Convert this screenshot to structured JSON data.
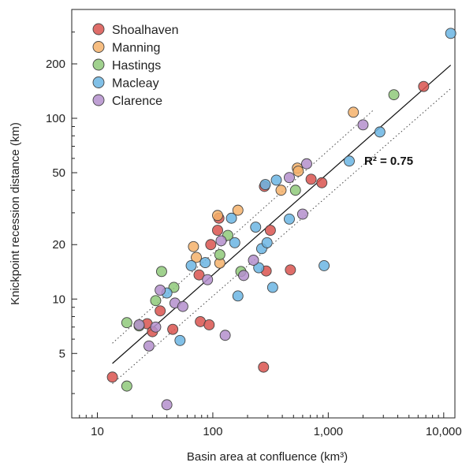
{
  "chart_data": {
    "type": "scatter",
    "xlabel": "Basin area at confluence (km³)",
    "ylabel": "Knickpoint recession distance (km)",
    "x_scale": "log",
    "y_scale": "log",
    "xlim": [
      6,
      12500
    ],
    "ylim": [
      2.2,
      400
    ],
    "x_ticks": [
      {
        "value": 10,
        "label": "10"
      },
      {
        "value": 100,
        "label": "100"
      },
      {
        "value": 1000,
        "label": "1,000"
      },
      {
        "value": 10000,
        "label": "10,000"
      }
    ],
    "y_ticks": [
      {
        "value": 5,
        "label": "5"
      },
      {
        "value": 10,
        "label": "10"
      },
      {
        "value": 20,
        "label": "20"
      },
      {
        "value": 50,
        "label": "50"
      },
      {
        "value": 100,
        "label": "100"
      },
      {
        "value": 200,
        "label": "200"
      }
    ],
    "legend_position": "top-left",
    "grid": false,
    "annotation": "R² = 0.75",
    "fit_line": {
      "x": [
        13.5,
        11500
      ],
      "y": [
        4.4,
        197
      ]
    },
    "confidence_upper": {
      "x": [
        13.5,
        2500
      ],
      "y": [
        5.7,
        112
      ]
    },
    "confidence_lower": {
      "x": [
        13.5,
        11500
      ],
      "y": [
        3.4,
        146
      ]
    },
    "series": [
      {
        "name": "Shoalhaven",
        "color": "#d9534f",
        "points": [
          [
            13.5,
            3.7
          ],
          [
            27,
            7.3
          ],
          [
            30,
            6.6
          ],
          [
            35,
            8.6
          ],
          [
            45,
            6.8
          ],
          [
            78,
            7.5
          ],
          [
            93,
            7.2
          ],
          [
            76,
            13.6
          ],
          [
            96,
            20
          ],
          [
            110,
            24
          ],
          [
            113,
            28
          ],
          [
            275,
            4.2
          ],
          [
            290,
            14.3
          ],
          [
            470,
            14.5
          ],
          [
            280,
            42
          ],
          [
            315,
            24
          ],
          [
            710,
            46
          ],
          [
            880,
            44
          ],
          [
            6700,
            150
          ]
        ]
      },
      {
        "name": "Manning",
        "color": "#f5b26b",
        "points": [
          [
            68,
            19.5
          ],
          [
            72,
            17
          ],
          [
            110,
            29
          ],
          [
            165,
            31
          ],
          [
            115,
            15.8
          ],
          [
            390,
            40
          ],
          [
            540,
            53
          ],
          [
            550,
            51
          ],
          [
            1650,
            108
          ]
        ]
      },
      {
        "name": "Hastings",
        "color": "#8fc97a",
        "points": [
          [
            18,
            3.3
          ],
          [
            18,
            7.4
          ],
          [
            23,
            7.1
          ],
          [
            32,
            9.8
          ],
          [
            36,
            14.2
          ],
          [
            46,
            11.6
          ],
          [
            115,
            17.6
          ],
          [
            135,
            22.5
          ],
          [
            175,
            14.2
          ],
          [
            520,
            40
          ],
          [
            3700,
            135
          ]
        ]
      },
      {
        "name": "Macleay",
        "color": "#6bb5e3",
        "points": [
          [
            40,
            10.8
          ],
          [
            52,
            5.9
          ],
          [
            65,
            15.3
          ],
          [
            86,
            15.9
          ],
          [
            145,
            28
          ],
          [
            155,
            20.5
          ],
          [
            165,
            10.4
          ],
          [
            235,
            25
          ],
          [
            250,
            14.9
          ],
          [
            265,
            19
          ],
          [
            285,
            43
          ],
          [
            295,
            20.5
          ],
          [
            330,
            11.6
          ],
          [
            355,
            45.5
          ],
          [
            460,
            27.7
          ],
          [
            920,
            15.3
          ],
          [
            1520,
            58
          ],
          [
            2800,
            84
          ],
          [
            11500,
            295
          ]
        ]
      },
      {
        "name": "Clarence",
        "color": "#b48fcc",
        "points": [
          [
            23,
            7.2
          ],
          [
            28,
            5.5
          ],
          [
            32,
            7
          ],
          [
            35,
            11.2
          ],
          [
            40,
            2.6
          ],
          [
            47,
            9.5
          ],
          [
            55,
            9.1
          ],
          [
            90,
            12.8
          ],
          [
            118,
            21
          ],
          [
            128,
            6.3
          ],
          [
            225,
            16.4
          ],
          [
            185,
            13.5
          ],
          [
            460,
            47
          ],
          [
            600,
            29.5
          ],
          [
            650,
            56
          ],
          [
            2000,
            92
          ]
        ]
      }
    ]
  }
}
